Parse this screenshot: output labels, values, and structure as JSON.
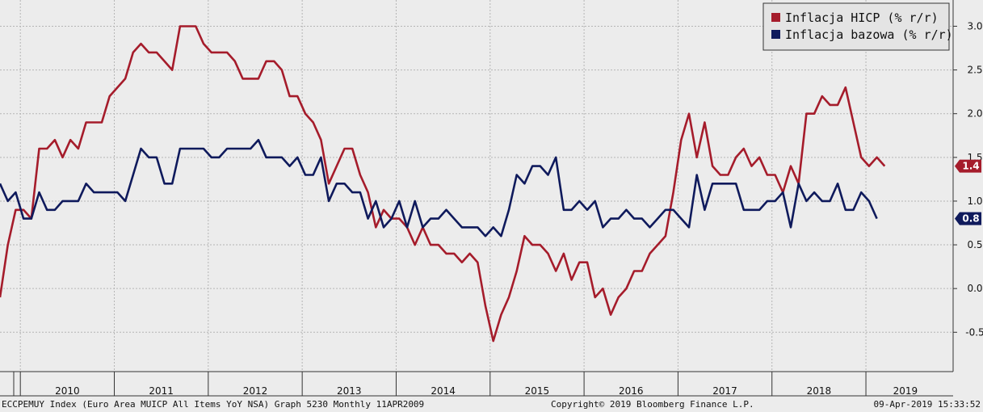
{
  "footer": {
    "left": "ECCPEMUY Index (Euro Area MUICP All Items YoY NSA) Graph 5230  Monthly 11APR2009",
    "center": "Copyright© 2019 Bloomberg Finance L.P.",
    "right": "09-Apr-2019 15:33:52"
  },
  "legend": {
    "items": [
      {
        "label": "Inflacja HICP (% r/r)",
        "color": "#a51c2b"
      },
      {
        "label": "Inflacja bazowa (% r/r)",
        "color": "#0f1a5c"
      }
    ]
  },
  "callouts": [
    {
      "series": 0,
      "text": "1.4",
      "value": 1.4
    },
    {
      "series": 1,
      "text": "0.8",
      "value": 0.8
    }
  ],
  "chart_data": {
    "type": "line",
    "title": "",
    "xlabel": "",
    "ylabel": "",
    "ylim": [
      -0.95,
      3.3
    ],
    "y_ticks": [
      -0.5,
      0.0,
      0.5,
      1.0,
      1.5,
      2.0,
      2.5,
      3.0
    ],
    "y_tick_labels": [
      "-0.5",
      "0.0",
      "0.5",
      "1.0",
      "1.5",
      "2.0",
      "2.5",
      "3.0"
    ],
    "x_axis": {
      "start": "2009-10",
      "end": "2019-04",
      "year_labels": [
        "2010",
        "2011",
        "2012",
        "2013",
        "2014",
        "2015",
        "2016",
        "2017",
        "2018",
        "2019"
      ]
    },
    "grid": true,
    "legend_position": "top-right",
    "series": [
      {
        "name": "Inflacja HICP (% r/r)",
        "color": "#a51c2b",
        "x_start": "2009-10",
        "frequency": "monthly",
        "values": [
          -0.1,
          0.5,
          0.9,
          0.9,
          0.8,
          1.6,
          1.6,
          1.7,
          1.5,
          1.7,
          1.6,
          1.9,
          1.9,
          1.9,
          2.2,
          2.3,
          2.4,
          2.7,
          2.8,
          2.7,
          2.7,
          2.6,
          2.5,
          3.0,
          3.0,
          3.0,
          2.8,
          2.7,
          2.7,
          2.7,
          2.6,
          2.4,
          2.4,
          2.4,
          2.6,
          2.6,
          2.5,
          2.2,
          2.2,
          2.0,
          1.9,
          1.7,
          1.2,
          1.4,
          1.6,
          1.6,
          1.3,
          1.1,
          0.7,
          0.9,
          0.8,
          0.8,
          0.7,
          0.5,
          0.7,
          0.5,
          0.5,
          0.4,
          0.4,
          0.3,
          0.4,
          0.3,
          -0.2,
          -0.6,
          -0.3,
          -0.1,
          0.2,
          0.6,
          0.5,
          0.5,
          0.4,
          0.2,
          0.4,
          0.1,
          0.3,
          0.3,
          -0.1,
          0.0,
          -0.3,
          -0.1,
          0.0,
          0.2,
          0.2,
          0.4,
          0.5,
          0.6,
          1.1,
          1.7,
          2.0,
          1.5,
          1.9,
          1.4,
          1.3,
          1.3,
          1.5,
          1.6,
          1.4,
          1.5,
          1.3,
          1.3,
          1.1,
          1.4,
          1.2,
          2.0,
          2.0,
          2.2,
          2.1,
          2.1,
          2.3,
          1.9,
          1.5,
          1.4,
          1.5,
          1.4
        ]
      },
      {
        "name": "Inflacja bazowa (% r/r)",
        "color": "#0f1a5c",
        "x_start": "2009-10",
        "frequency": "monthly",
        "values": [
          1.2,
          1.0,
          1.1,
          0.8,
          0.8,
          1.1,
          0.9,
          0.9,
          1.0,
          1.0,
          1.0,
          1.2,
          1.1,
          1.1,
          1.1,
          1.1,
          1.0,
          1.3,
          1.6,
          1.5,
          1.5,
          1.2,
          1.2,
          1.6,
          1.6,
          1.6,
          1.6,
          1.5,
          1.5,
          1.6,
          1.6,
          1.6,
          1.6,
          1.7,
          1.5,
          1.5,
          1.5,
          1.4,
          1.5,
          1.3,
          1.3,
          1.5,
          1.0,
          1.2,
          1.2,
          1.1,
          1.1,
          0.8,
          1.0,
          0.7,
          0.8,
          1.0,
          0.7,
          1.0,
          0.7,
          0.8,
          0.8,
          0.9,
          0.8,
          0.7,
          0.7,
          0.7,
          0.6,
          0.7,
          0.6,
          0.9,
          1.3,
          1.2,
          1.4,
          1.4,
          1.3,
          1.5,
          0.9,
          0.9,
          1.0,
          0.9,
          1.0,
          0.7,
          0.8,
          0.8,
          0.9,
          0.8,
          0.8,
          0.7,
          0.8,
          0.9,
          0.9,
          0.8,
          0.7,
          1.3,
          0.9,
          1.2,
          1.2,
          1.2,
          1.2,
          0.9,
          0.9,
          0.9,
          1.0,
          1.0,
          1.1,
          0.7,
          1.2,
          1.0,
          1.1,
          1.0,
          1.0,
          1.2,
          0.9,
          0.9,
          1.1,
          1.0,
          0.8
        ]
      }
    ]
  }
}
